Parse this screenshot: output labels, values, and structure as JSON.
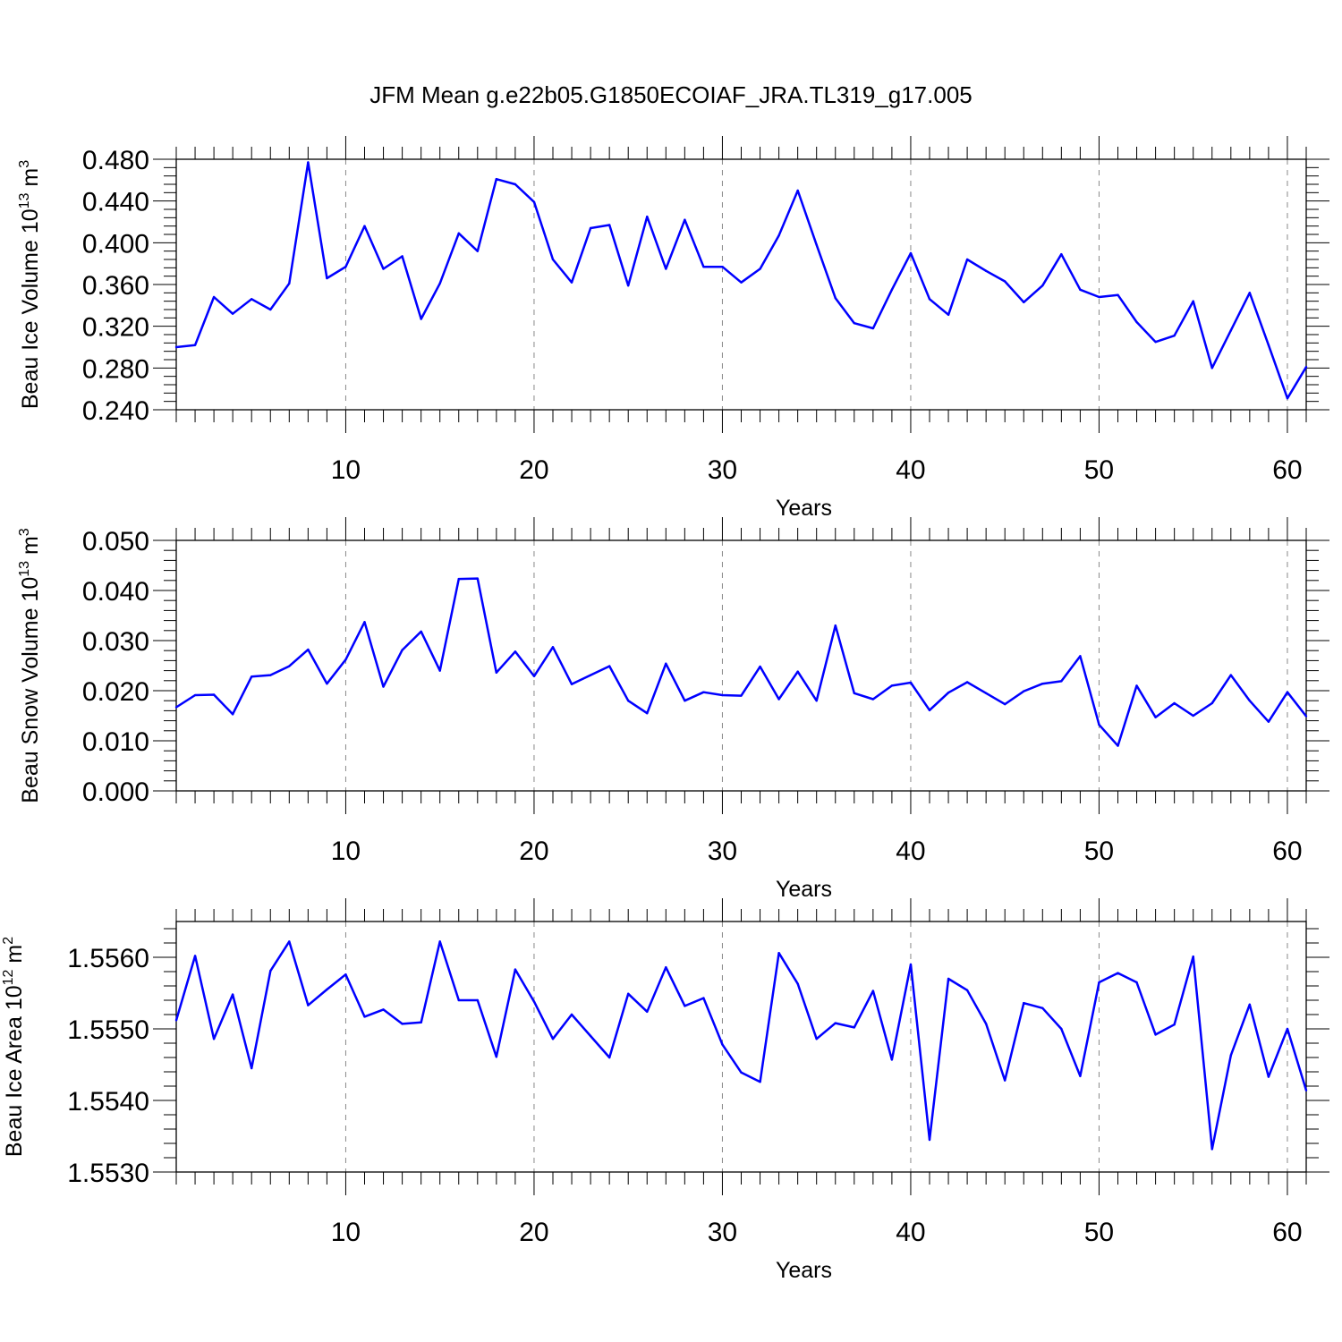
{
  "title": "JFM Mean g.e22b05.G1850ECOIAF_JRA.TL319_g17.005",
  "line_color": "#0000ff",
  "chart_data": [
    {
      "type": "line",
      "title": "",
      "xlabel": "Years",
      "ylabel": "Beau Ice Volume 10",
      "ylabel_exp": "13",
      "ylabel_unit": " m",
      "ylabel_unit_exp": "3",
      "xlim": [
        1,
        61
      ],
      "ylim": [
        0.24,
        0.48
      ],
      "xticks": [
        10,
        20,
        30,
        40,
        50,
        60
      ],
      "yticks": [
        0.24,
        0.28,
        0.32,
        0.36,
        0.4,
        0.44,
        0.48
      ],
      "ytick_labels": [
        "0.240",
        "0.280",
        "0.320",
        "0.360",
        "0.400",
        "0.440",
        "0.480"
      ],
      "grid": "vertical dashed",
      "series": [
        {
          "x": [
            1,
            2,
            3,
            4,
            5,
            6,
            7,
            8,
            9,
            10,
            11,
            12,
            13,
            14,
            15,
            16,
            17,
            18,
            19,
            20,
            21,
            22,
            23,
            24,
            25,
            26,
            27,
            28,
            29,
            30,
            31,
            32,
            33,
            34,
            35,
            36,
            37,
            38,
            39,
            40,
            41,
            42,
            43,
            44,
            45,
            46,
            47,
            48,
            49,
            50,
            51,
            52,
            53,
            54,
            55,
            56,
            57,
            58,
            59,
            60,
            61
          ],
          "y": [
            0.3,
            0.302,
            0.348,
            0.332,
            0.346,
            0.336,
            0.361,
            0.477,
            0.366,
            0.377,
            0.416,
            0.375,
            0.387,
            0.327,
            0.361,
            0.409,
            0.392,
            0.461,
            0.456,
            0.439,
            0.384,
            0.362,
            0.414,
            0.417,
            0.359,
            0.425,
            0.375,
            0.422,
            0.377,
            0.377,
            0.362,
            0.375,
            0.407,
            0.45,
            0.398,
            0.347,
            0.323,
            0.318,
            0.355,
            0.39,
            0.346,
            0.331,
            0.384,
            0.373,
            0.363,
            0.343,
            0.359,
            0.389,
            0.355,
            0.348,
            0.35,
            0.324,
            0.305,
            0.311,
            0.344,
            0.28,
            0.316,
            0.352,
            0.302,
            0.251,
            0.281
          ]
        }
      ]
    },
    {
      "type": "line",
      "title": "",
      "xlabel": "Years",
      "ylabel": "Beau Snow Volume 10",
      "ylabel_exp": "13",
      "ylabel_unit": " m",
      "ylabel_unit_exp": "3",
      "xlim": [
        1,
        61
      ],
      "ylim": [
        0.0,
        0.05
      ],
      "xticks": [
        10,
        20,
        30,
        40,
        50,
        60
      ],
      "yticks": [
        0.0,
        0.01,
        0.02,
        0.03,
        0.04,
        0.05
      ],
      "ytick_labels": [
        "0.000",
        "0.010",
        "0.020",
        "0.030",
        "0.040",
        "0.050"
      ],
      "grid": "vertical dashed",
      "series": [
        {
          "x": [
            1,
            2,
            3,
            4,
            5,
            6,
            7,
            8,
            9,
            10,
            11,
            12,
            13,
            14,
            15,
            16,
            17,
            18,
            19,
            20,
            21,
            22,
            23,
            24,
            25,
            26,
            27,
            28,
            29,
            30,
            31,
            32,
            33,
            34,
            35,
            36,
            37,
            38,
            39,
            40,
            41,
            42,
            43,
            44,
            45,
            46,
            47,
            48,
            49,
            50,
            51,
            52,
            53,
            54,
            55,
            56,
            57,
            58,
            59,
            60,
            61
          ],
          "y": [
            0.0167,
            0.0191,
            0.0192,
            0.0153,
            0.0228,
            0.0231,
            0.0249,
            0.0282,
            0.0214,
            0.0262,
            0.0337,
            0.0208,
            0.0281,
            0.0318,
            0.024,
            0.0423,
            0.0424,
            0.0236,
            0.0278,
            0.0229,
            0.0287,
            0.0213,
            0.0231,
            0.0249,
            0.018,
            0.0155,
            0.0254,
            0.018,
            0.0197,
            0.0191,
            0.019,
            0.0248,
            0.0183,
            0.0238,
            0.018,
            0.033,
            0.0195,
            0.0183,
            0.021,
            0.0216,
            0.0161,
            0.0196,
            0.0217,
            0.0195,
            0.0173,
            0.0199,
            0.0214,
            0.0219,
            0.0269,
            0.0132,
            0.009,
            0.021,
            0.0147,
            0.0175,
            0.015,
            0.0175,
            0.0231,
            0.018,
            0.0138,
            0.0197,
            0.0149
          ]
        }
      ]
    },
    {
      "type": "line",
      "title": "",
      "xlabel": "Years",
      "ylabel": "Beau Ice Area 10",
      "ylabel_exp": "12",
      "ylabel_unit": " m",
      "ylabel_unit_exp": "2",
      "xlim": [
        1,
        61
      ],
      "ylim": [
        1.553,
        1.5565
      ],
      "xticks": [
        10,
        20,
        30,
        40,
        50,
        60
      ],
      "yticks": [
        1.553,
        1.554,
        1.555,
        1.556
      ],
      "ytick_labels": [
        "1.5530",
        "1.5540",
        "1.5550",
        "1.5560"
      ],
      "grid": "vertical dashed",
      "series": [
        {
          "x": [
            1,
            2,
            3,
            4,
            5,
            6,
            7,
            8,
            9,
            10,
            11,
            12,
            13,
            14,
            15,
            16,
            17,
            18,
            19,
            20,
            21,
            22,
            23,
            24,
            25,
            26,
            27,
            28,
            29,
            30,
            31,
            32,
            33,
            34,
            35,
            36,
            37,
            38,
            39,
            40,
            41,
            42,
            43,
            44,
            45,
            46,
            47,
            48,
            49,
            50,
            51,
            52,
            53,
            54,
            55,
            56,
            57,
            58,
            59,
            60,
            61
          ],
          "y": [
            1.55512,
            1.55602,
            1.55486,
            1.55548,
            1.55445,
            1.55581,
            1.55622,
            1.55533,
            1.55555,
            1.55576,
            1.55517,
            1.55527,
            1.55507,
            1.55509,
            1.55622,
            1.5554,
            1.5554,
            1.55461,
            1.55583,
            1.55538,
            1.55486,
            1.5552,
            1.5549,
            1.5546,
            1.55549,
            1.55524,
            1.55586,
            1.55532,
            1.55543,
            1.55478,
            1.55439,
            1.55426,
            1.55606,
            1.55563,
            1.55486,
            1.55508,
            1.55502,
            1.55553,
            1.55457,
            1.5559,
            1.55345,
            1.5557,
            1.55554,
            1.55507,
            1.55428,
            1.55536,
            1.55529,
            1.555,
            1.55434,
            1.55565,
            1.55578,
            1.55565,
            1.55492,
            1.55506,
            1.55601,
            1.55332,
            1.55463,
            1.55534,
            1.55433,
            1.555,
            1.55414
          ]
        }
      ]
    }
  ]
}
